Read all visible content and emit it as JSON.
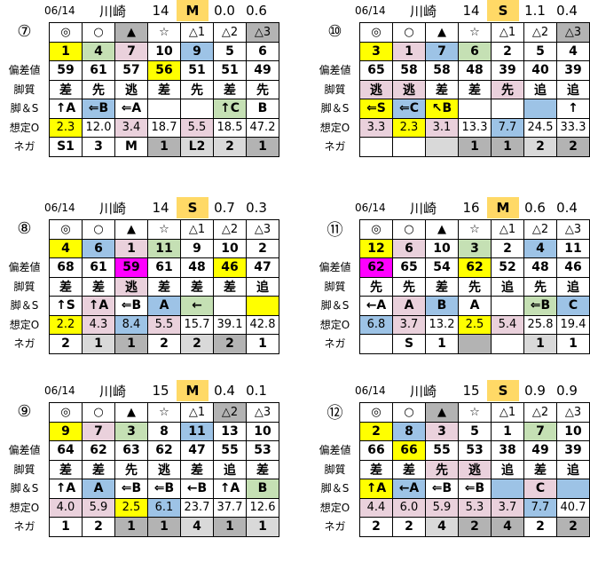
{
  "colors": {
    "y": "#ffff00",
    "g": "#c5e0b4",
    "p": "#ead1dc",
    "b": "#9dc3e6",
    "d": "#b3b3b3",
    "l": "#d9d9d9",
    "m": "#ff00ff",
    "o": "#ffd966",
    "": "#ffffff"
  },
  "row_labels": [
    "",
    "偏差値",
    "脚質",
    "脚＆S",
    "想定O",
    "ネガ"
  ],
  "panels": [
    {
      "race": "⑦",
      "date": "06/14",
      "venue": "川崎",
      "count": "14",
      "pace": "M",
      "v1": "0.0",
      "v2": "0.6",
      "rows": [
        [
          [
            "◎",
            ""
          ],
          [
            "○",
            ""
          ],
          [
            "▲",
            "d"
          ],
          [
            "☆",
            ""
          ],
          [
            "△1",
            ""
          ],
          [
            "△2",
            ""
          ],
          [
            "△3",
            "d"
          ]
        ],
        [
          [
            "1",
            "y"
          ],
          [
            "4",
            "g"
          ],
          [
            "7",
            "p"
          ],
          [
            "10",
            ""
          ],
          [
            "9",
            "b"
          ],
          [
            "5",
            ""
          ],
          [
            "6",
            ""
          ]
        ],
        [
          [
            "59",
            ""
          ],
          [
            "61",
            ""
          ],
          [
            "57",
            ""
          ],
          [
            "56",
            "y"
          ],
          [
            "51",
            ""
          ],
          [
            "51",
            ""
          ],
          [
            "49",
            ""
          ]
        ],
        [
          [
            "差",
            ""
          ],
          [
            "先",
            ""
          ],
          [
            "逃",
            ""
          ],
          [
            "差",
            ""
          ],
          [
            "先",
            ""
          ],
          [
            "差",
            ""
          ],
          [
            "先",
            ""
          ]
        ],
        [
          [
            "↑A",
            ""
          ],
          [
            "⇐B",
            "b"
          ],
          [
            "⇐A",
            ""
          ],
          [
            "",
            ""
          ],
          [
            "",
            ""
          ],
          [
            "↑C",
            "g"
          ],
          [
            "B",
            ""
          ]
        ],
        [
          [
            "2.3",
            "y"
          ],
          [
            "12.0",
            ""
          ],
          [
            "3.4",
            "p"
          ],
          [
            "18.7",
            ""
          ],
          [
            "5.5",
            "p"
          ],
          [
            "18.5",
            ""
          ],
          [
            "47.2",
            ""
          ]
        ],
        [
          [
            "S1",
            ""
          ],
          [
            "3",
            ""
          ],
          [
            "M",
            ""
          ],
          [
            "1",
            "d"
          ],
          [
            "L2",
            "l"
          ],
          [
            "2",
            "l"
          ],
          [
            "1",
            "d"
          ]
        ]
      ]
    },
    {
      "race": "⑩",
      "date": "06/14",
      "venue": "川崎",
      "count": "14",
      "pace": "S",
      "v1": "1.1",
      "v2": "0.4",
      "rows": [
        [
          [
            "◎",
            ""
          ],
          [
            "○",
            ""
          ],
          [
            "▲",
            ""
          ],
          [
            "☆",
            ""
          ],
          [
            "△1",
            ""
          ],
          [
            "△2",
            ""
          ],
          [
            "△3",
            "d"
          ]
        ],
        [
          [
            "3",
            "y"
          ],
          [
            "1",
            "p"
          ],
          [
            "7",
            "b"
          ],
          [
            "6",
            "g"
          ],
          [
            "2",
            ""
          ],
          [
            "5",
            ""
          ],
          [
            "4",
            ""
          ]
        ],
        [
          [
            "65",
            ""
          ],
          [
            "58",
            ""
          ],
          [
            "58",
            ""
          ],
          [
            "48",
            ""
          ],
          [
            "39",
            ""
          ],
          [
            "40",
            ""
          ],
          [
            "39",
            ""
          ]
        ],
        [
          [
            "逃",
            "p"
          ],
          [
            "逃",
            "p"
          ],
          [
            "差",
            ""
          ],
          [
            "差",
            ""
          ],
          [
            "先",
            "p"
          ],
          [
            "追",
            ""
          ],
          [
            "追",
            ""
          ]
        ],
        [
          [
            "⇐S",
            "y"
          ],
          [
            "⇐C",
            "b"
          ],
          [
            "↖B",
            "y"
          ],
          [
            "",
            ""
          ],
          [
            "",
            ""
          ],
          [
            "",
            "b"
          ],
          [
            "↑",
            ""
          ]
        ],
        [
          [
            "3.3",
            "p"
          ],
          [
            "2.3",
            "y"
          ],
          [
            "3.1",
            "p"
          ],
          [
            "13.3",
            ""
          ],
          [
            "7.7",
            "b"
          ],
          [
            "24.5",
            ""
          ],
          [
            "33.3",
            ""
          ]
        ],
        [
          [
            "",
            ""
          ],
          [
            "",
            ""
          ],
          [
            "",
            "l"
          ],
          [
            "1",
            "d"
          ],
          [
            "1",
            "d"
          ],
          [
            "2",
            "l"
          ],
          [
            "2",
            "d"
          ]
        ]
      ]
    },
    {
      "race": "⑧",
      "date": "06/14",
      "venue": "川崎",
      "count": "14",
      "pace": "S",
      "v1": "0.7",
      "v2": "0.3",
      "rows": [
        [
          [
            "◎",
            ""
          ],
          [
            "○",
            ""
          ],
          [
            "▲",
            ""
          ],
          [
            "☆",
            ""
          ],
          [
            "△1",
            ""
          ],
          [
            "△2",
            ""
          ],
          [
            "△3",
            ""
          ]
        ],
        [
          [
            "4",
            "y"
          ],
          [
            "6",
            "b"
          ],
          [
            "1",
            "p"
          ],
          [
            "11",
            "g"
          ],
          [
            "9",
            ""
          ],
          [
            "10",
            ""
          ],
          [
            "2",
            ""
          ]
        ],
        [
          [
            "68",
            ""
          ],
          [
            "61",
            ""
          ],
          [
            "59",
            "m"
          ],
          [
            "61",
            ""
          ],
          [
            "48",
            ""
          ],
          [
            "46",
            "y"
          ],
          [
            "47",
            ""
          ]
        ],
        [
          [
            "差",
            ""
          ],
          [
            "差",
            ""
          ],
          [
            "逃",
            "p"
          ],
          [
            "差",
            ""
          ],
          [
            "差",
            ""
          ],
          [
            "差",
            ""
          ],
          [
            "追",
            ""
          ]
        ],
        [
          [
            "↑S",
            ""
          ],
          [
            "↑A",
            "p"
          ],
          [
            "⇐B",
            ""
          ],
          [
            "A",
            "b"
          ],
          [
            "←",
            "g"
          ],
          [
            "",
            ""
          ],
          [
            "",
            "y"
          ]
        ],
        [
          [
            "2.2",
            "y"
          ],
          [
            "4.3",
            "p"
          ],
          [
            "8.4",
            "b"
          ],
          [
            "5.5",
            "p"
          ],
          [
            "15.7",
            ""
          ],
          [
            "39.1",
            ""
          ],
          [
            "42.8",
            ""
          ]
        ],
        [
          [
            "2",
            ""
          ],
          [
            "1",
            "l"
          ],
          [
            "1",
            "d"
          ],
          [
            "2",
            ""
          ],
          [
            "2",
            "l"
          ],
          [
            "2",
            "d"
          ],
          [
            "1",
            ""
          ]
        ]
      ]
    },
    {
      "race": "⑪",
      "date": "06/14",
      "venue": "川崎",
      "count": "16",
      "pace": "M",
      "v1": "0.6",
      "v2": "0.4",
      "rows": [
        [
          [
            "◎",
            ""
          ],
          [
            "○",
            ""
          ],
          [
            "▲",
            ""
          ],
          [
            "☆",
            ""
          ],
          [
            "△1",
            ""
          ],
          [
            "△2",
            ""
          ],
          [
            "△3",
            ""
          ]
        ],
        [
          [
            "12",
            "y"
          ],
          [
            "6",
            "p"
          ],
          [
            "10",
            ""
          ],
          [
            "3",
            "g"
          ],
          [
            "2",
            ""
          ],
          [
            "4",
            "b"
          ],
          [
            "11",
            ""
          ]
        ],
        [
          [
            "62",
            "m"
          ],
          [
            "65",
            ""
          ],
          [
            "54",
            ""
          ],
          [
            "62",
            "y"
          ],
          [
            "52",
            ""
          ],
          [
            "48",
            ""
          ],
          [
            "46",
            ""
          ]
        ],
        [
          [
            "先",
            ""
          ],
          [
            "先",
            ""
          ],
          [
            "差",
            ""
          ],
          [
            "先",
            ""
          ],
          [
            "追",
            ""
          ],
          [
            "先",
            ""
          ],
          [
            "追",
            ""
          ]
        ],
        [
          [
            "←A",
            ""
          ],
          [
            "A",
            "p"
          ],
          [
            "B",
            "b"
          ],
          [
            "A",
            ""
          ],
          [
            "",
            ""
          ],
          [
            "⇐B",
            "g"
          ],
          [
            "C",
            "b"
          ]
        ],
        [
          [
            "6.8",
            "b"
          ],
          [
            "3.7",
            "p"
          ],
          [
            "13.2",
            ""
          ],
          [
            "2.5",
            "y"
          ],
          [
            "5.4",
            "p"
          ],
          [
            "25.8",
            ""
          ],
          [
            "19.4",
            ""
          ]
        ],
        [
          [
            "",
            ""
          ],
          [
            "S",
            ""
          ],
          [
            "1",
            ""
          ],
          [
            "",
            "d"
          ],
          [
            "",
            ""
          ],
          [
            "1",
            "l"
          ],
          [
            "1",
            ""
          ]
        ]
      ]
    },
    {
      "race": "⑨",
      "date": "06/14",
      "venue": "川崎",
      "count": "15",
      "pace": "M",
      "v1": "0.4",
      "v2": "0.1",
      "rows": [
        [
          [
            "◎",
            ""
          ],
          [
            "○",
            ""
          ],
          [
            "▲",
            ""
          ],
          [
            "☆",
            ""
          ],
          [
            "△1",
            ""
          ],
          [
            "△2",
            "d"
          ],
          [
            "△3",
            ""
          ]
        ],
        [
          [
            "9",
            "y"
          ],
          [
            "7",
            "p"
          ],
          [
            "3",
            "g"
          ],
          [
            "8",
            ""
          ],
          [
            "11",
            "b"
          ],
          [
            "13",
            ""
          ],
          [
            "10",
            ""
          ]
        ],
        [
          [
            "64",
            ""
          ],
          [
            "62",
            ""
          ],
          [
            "63",
            ""
          ],
          [
            "62",
            ""
          ],
          [
            "47",
            ""
          ],
          [
            "55",
            ""
          ],
          [
            "53",
            ""
          ]
        ],
        [
          [
            "差",
            ""
          ],
          [
            "差",
            ""
          ],
          [
            "先",
            ""
          ],
          [
            "逃",
            ""
          ],
          [
            "差",
            ""
          ],
          [
            "追",
            ""
          ],
          [
            "差",
            ""
          ]
        ],
        [
          [
            "↑A",
            ""
          ],
          [
            "A",
            "b"
          ],
          [
            "⇐B",
            ""
          ],
          [
            "⇐B",
            ""
          ],
          [
            "←B",
            ""
          ],
          [
            "↑A",
            ""
          ],
          [
            "B",
            "g"
          ]
        ],
        [
          [
            "4.0",
            "p"
          ],
          [
            "5.9",
            "p"
          ],
          [
            "2.5",
            "y"
          ],
          [
            "6.1",
            "b"
          ],
          [
            "23.7",
            ""
          ],
          [
            "37.7",
            ""
          ],
          [
            "12.6",
            ""
          ]
        ],
        [
          [
            "1",
            ""
          ],
          [
            "2",
            ""
          ],
          [
            "1",
            "d"
          ],
          [
            "1",
            "d"
          ],
          [
            "4",
            "l"
          ],
          [
            "1",
            "d"
          ],
          [
            "1",
            "l"
          ]
        ]
      ]
    },
    {
      "race": "⑫",
      "date": "06/14",
      "venue": "川崎",
      "count": "15",
      "pace": "S",
      "v1": "0.9",
      "v2": "0.9",
      "rows": [
        [
          [
            "◎",
            ""
          ],
          [
            "○",
            ""
          ],
          [
            "▲",
            "d"
          ],
          [
            "☆",
            ""
          ],
          [
            "△1",
            ""
          ],
          [
            "△2",
            ""
          ],
          [
            "△3",
            ""
          ]
        ],
        [
          [
            "2",
            "y"
          ],
          [
            "8",
            "b"
          ],
          [
            "3",
            "p"
          ],
          [
            "5",
            ""
          ],
          [
            "1",
            ""
          ],
          [
            "7",
            "g"
          ],
          [
            "10",
            ""
          ]
        ],
        [
          [
            "66",
            ""
          ],
          [
            "66",
            "y"
          ],
          [
            "55",
            ""
          ],
          [
            "53",
            ""
          ],
          [
            "38",
            ""
          ],
          [
            "49",
            ""
          ],
          [
            "39",
            ""
          ]
        ],
        [
          [
            "差",
            ""
          ],
          [
            "差",
            ""
          ],
          [
            "先",
            "p"
          ],
          [
            "逃",
            "p"
          ],
          [
            "追",
            ""
          ],
          [
            "差",
            ""
          ],
          [
            "追",
            ""
          ]
        ],
        [
          [
            "↑A",
            "y"
          ],
          [
            "←A",
            "b"
          ],
          [
            "⇐B",
            ""
          ],
          [
            "⇐B",
            ""
          ],
          [
            "",
            "b"
          ],
          [
            "C",
            "p"
          ],
          [
            "",
            "b"
          ]
        ],
        [
          [
            "4.4",
            "p"
          ],
          [
            "6.0",
            "p"
          ],
          [
            "5.9",
            "p"
          ],
          [
            "5.3",
            "p"
          ],
          [
            "3.7",
            "p"
          ],
          [
            "7.7",
            "b"
          ],
          [
            "40.7",
            ""
          ]
        ],
        [
          [
            "2",
            ""
          ],
          [
            "2",
            ""
          ],
          [
            "4",
            "l"
          ],
          [
            "2",
            "d"
          ],
          [
            "4",
            "d"
          ],
          [
            "2",
            ""
          ],
          [
            "2",
            "d"
          ]
        ]
      ]
    }
  ]
}
